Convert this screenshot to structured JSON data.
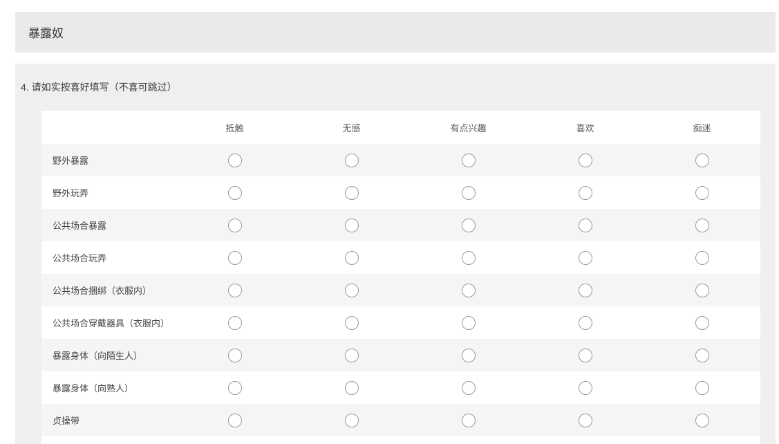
{
  "window": {
    "title": "暴露奴"
  },
  "question": {
    "text": "4. 请如实按喜好填写（不喜可跳过）"
  },
  "matrix": {
    "columns": [
      "抵触",
      "无感",
      "有点兴趣",
      "喜欢",
      "痴迷"
    ],
    "rows": [
      "野外暴露",
      "野外玩弄",
      "公共场合暴露",
      "公共场合玩弄",
      "公共场合捆绑（衣服内）",
      "公共场合穿戴器具（衣服内）",
      "暴露身体（向陌生人）",
      "暴露身体（向熟人）",
      "贞操带"
    ],
    "selection_state": "all-unselected"
  },
  "colors": {
    "titlebar_bg": "#eaeaea",
    "card_bg": "#efefef",
    "stripe_bg": "#f5f5f5",
    "row_bg": "#ffffff",
    "radio_border": "#999999",
    "title_text": "#333333",
    "body_text": "#444444"
  }
}
